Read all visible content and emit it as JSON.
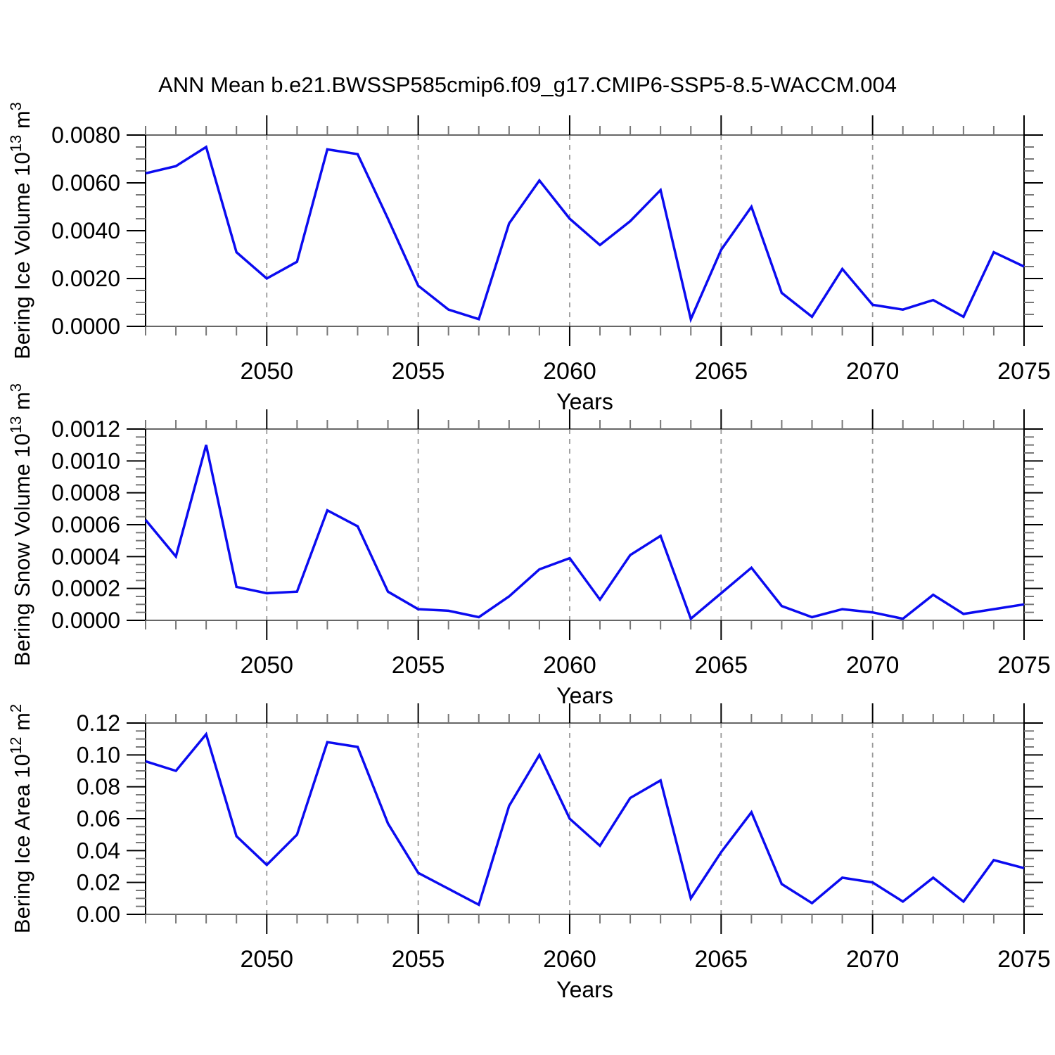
{
  "page_title": "ANN Mean b.e21.BWSSP585cmip6.f09_g17.CMIP6-SSP5-8.5-WACCM.004",
  "colors": {
    "line": "#0b0bf0",
    "grid": "#999999",
    "frame_horizontal": "#666666",
    "frame_vertical": "#000000",
    "major_tick": "#000000",
    "minor_tick": "#777777",
    "text": "#000000",
    "background": "#ffffff"
  },
  "xlabel": "Years",
  "xlim": [
    2046,
    2075
  ],
  "years": [
    2046,
    2047,
    2048,
    2049,
    2050,
    2051,
    2052,
    2053,
    2054,
    2055,
    2056,
    2057,
    2058,
    2059,
    2060,
    2061,
    2062,
    2063,
    2064,
    2065,
    2066,
    2067,
    2068,
    2069,
    2070,
    2071,
    2072,
    2073,
    2074,
    2075
  ],
  "x_ticks": {
    "values": [
      2050,
      2055,
      2060,
      2065,
      2070,
      2075
    ],
    "labels": [
      "2050",
      "2055",
      "2060",
      "2065",
      "2070",
      "2075"
    ]
  },
  "chart_data": [
    {
      "type": "line",
      "name": "bering-ice-volume",
      "ylabel": {
        "base": "Bering Ice Volume 10",
        "exp": "13",
        "unit": " m",
        "unit_exp": "3"
      },
      "xlabel": "Years",
      "ylim": [
        0,
        0.008
      ],
      "ytick_values": [
        0.0,
        0.002,
        0.004,
        0.006,
        0.008
      ],
      "ytick_labels": [
        "0.0000",
        "0.0020",
        "0.0040",
        "0.0060",
        "0.0080"
      ],
      "y_minor_step": 0.0005,
      "grid": true,
      "values": [
        0.0064,
        0.0067,
        0.0075,
        0.0031,
        0.002,
        0.0027,
        0.0074,
        0.0072,
        0.0045,
        0.0017,
        0.0007,
        0.0003,
        0.0043,
        0.0061,
        0.0045,
        0.0034,
        0.0044,
        0.0057,
        0.0003,
        0.0032,
        0.005,
        0.0014,
        0.0004,
        0.0024,
        0.0009,
        0.0007,
        0.0011,
        0.0004,
        0.0031,
        0.0025
      ]
    },
    {
      "type": "line",
      "name": "bering-snow-volume",
      "ylabel": {
        "base": "Bering Snow Volume 10",
        "exp": "13",
        "unit": " m",
        "unit_exp": "3"
      },
      "xlabel": "Years",
      "ylim": [
        0,
        0.0012
      ],
      "ytick_values": [
        0.0,
        0.0002,
        0.0004,
        0.0006,
        0.0008,
        0.001,
        0.0012
      ],
      "ytick_labels": [
        "0.0000",
        "0.0002",
        "0.0004",
        "0.0006",
        "0.0008",
        "0.0010",
        "0.0012"
      ],
      "y_minor_step": 5e-05,
      "grid": true,
      "values": [
        0.00063,
        0.0004,
        0.0011,
        0.00021,
        0.00017,
        0.00018,
        0.00069,
        0.00059,
        0.00018,
        7e-05,
        6e-05,
        2e-05,
        0.00015,
        0.00032,
        0.00039,
        0.00013,
        0.00041,
        0.00053,
        1e-05,
        0.00017,
        0.00033,
        9e-05,
        2e-05,
        7e-05,
        5e-05,
        1e-05,
        0.00016,
        4e-05,
        7e-05,
        0.0001
      ]
    },
    {
      "type": "line",
      "name": "bering-ice-area",
      "ylabel": {
        "base": "Bering Ice Area 10",
        "exp": "12",
        "unit": " m",
        "unit_exp": "2"
      },
      "xlabel": "Years",
      "ylim": [
        0,
        0.12
      ],
      "ytick_values": [
        0.0,
        0.02,
        0.04,
        0.06,
        0.08,
        0.1,
        0.12
      ],
      "ytick_labels": [
        "0.00",
        "0.02",
        "0.04",
        "0.06",
        "0.08",
        "0.10",
        "0.12"
      ],
      "y_minor_step": 0.005,
      "grid": true,
      "values": [
        0.096,
        0.09,
        0.113,
        0.049,
        0.031,
        0.05,
        0.108,
        0.105,
        0.057,
        0.026,
        0.016,
        0.006,
        0.068,
        0.1,
        0.06,
        0.043,
        0.073,
        0.084,
        0.01,
        0.039,
        0.064,
        0.019,
        0.007,
        0.023,
        0.02,
        0.008,
        0.023,
        0.008,
        0.034,
        0.029
      ]
    }
  ]
}
